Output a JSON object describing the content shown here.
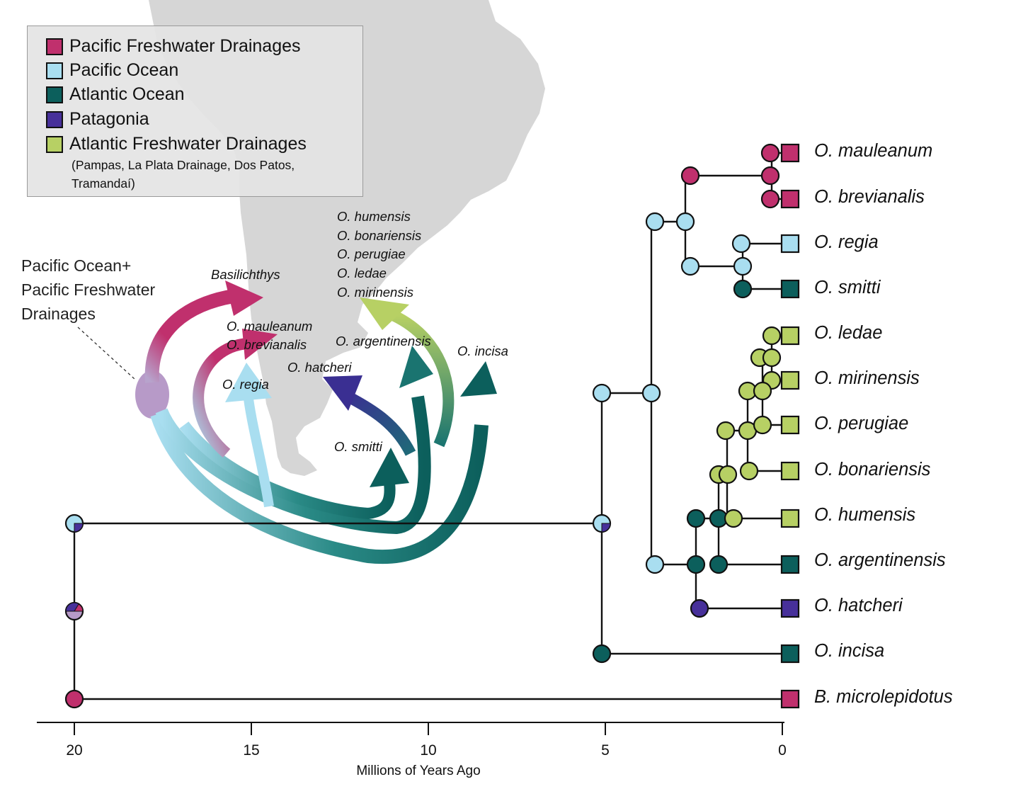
{
  "colors": {
    "pacific_freshwater": "#c0306d",
    "pacific_ocean": "#a9def0",
    "atlantic_ocean": "#0c5f5c",
    "patagonia": "#47309a",
    "atlantic_freshwater": "#b7d064",
    "mixed_region": "#b79ac8",
    "map": "#d6d6d6"
  },
  "legend": {
    "items": [
      {
        "label": "Pacific Freshwater Drainages",
        "color_key": "pacific_freshwater"
      },
      {
        "label": "Pacific Ocean",
        "color_key": "pacific_ocean"
      },
      {
        "label": "Atlantic Ocean",
        "color_key": "atlantic_ocean"
      },
      {
        "label": "Patagonia",
        "color_key": "patagonia"
      },
      {
        "label": "Atlantic Freshwater Drainages",
        "color_key": "atlantic_freshwater"
      }
    ],
    "note_line1": "(Pampas, La Plata Drainage, Dos Patos,",
    "note_line2": "Tramandaí)"
  },
  "map": {
    "source_label_line1": "Pacific Ocean+",
    "source_label_line2": "Pacific Freshwater",
    "source_label_line3": "Drainages",
    "labels": {
      "basilichthys": "Basilichthys",
      "mauleanum": "O. mauleanum",
      "brevianalis": "O. brevianalis",
      "regia": "O. regia",
      "hatcheri": "O. hatcheri",
      "smitti": "O. smitti",
      "argentinensis": "O. argentinensis",
      "incisa": "O. incisa",
      "humensis": "O. humensis",
      "bonariensis": "O. bonariensis",
      "perugiae": "O. perugiae",
      "ledae": "O. ledae",
      "mirinensis": "O. mirinensis"
    }
  },
  "tree": {
    "taxa": [
      "O. mauleanum",
      "O. brevianalis",
      "O. regia",
      "O. smitti",
      "O. ledae",
      "O. mirinensis",
      "O. perugiae",
      "O. bonariensis",
      "O. humensis",
      "O. argentinensis",
      "O. hatcheri",
      "O. incisa",
      "B. microlepidotus"
    ],
    "tip_states": [
      "pacific_freshwater",
      "pacific_freshwater",
      "pacific_ocean",
      "atlantic_ocean",
      "atlantic_freshwater",
      "atlantic_freshwater",
      "atlantic_freshwater",
      "atlantic_freshwater",
      "atlantic_freshwater",
      "atlantic_ocean",
      "patagonia",
      "atlantic_ocean",
      "pacific_freshwater"
    ]
  },
  "axis": {
    "ticks": [
      "20",
      "15",
      "10",
      "5",
      "0"
    ],
    "title": "Millions of Years Ago"
  }
}
